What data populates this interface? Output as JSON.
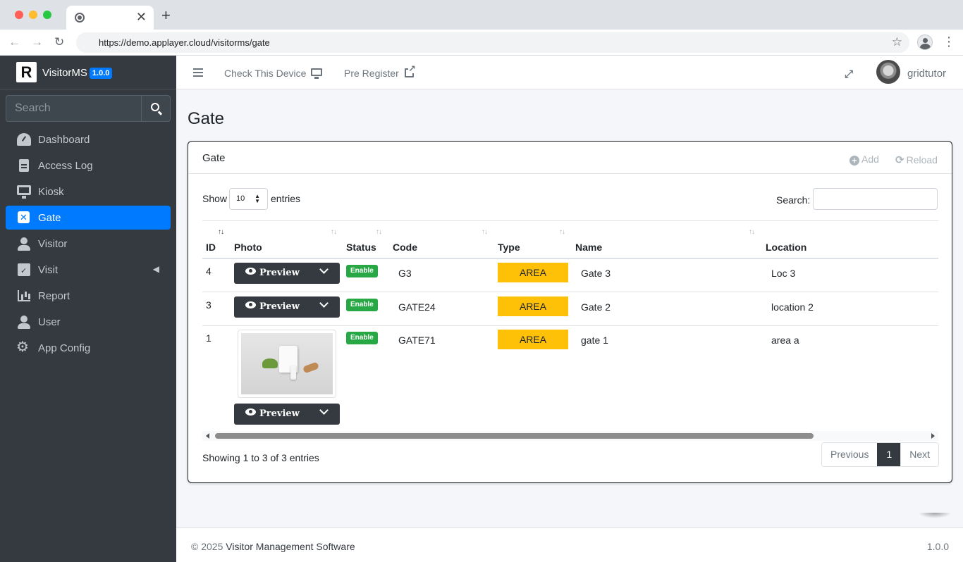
{
  "browser": {
    "url": "https://demo.applayer.cloud/visitorms/gate",
    "new_tab_symbol": "+",
    "close_symbol": "✕"
  },
  "brand": {
    "logo_letter": "R",
    "name": "VisitorMS",
    "version_badge": "1.0.0"
  },
  "sidebar": {
    "search_placeholder": "Search",
    "items": [
      {
        "label": "Dashboard",
        "icon": "dashboard-gauge-icon"
      },
      {
        "label": "Access Log",
        "icon": "file-icon"
      },
      {
        "label": "Kiosk",
        "icon": "desktop-icon"
      },
      {
        "label": "Gate",
        "icon": "x-square-icon",
        "active": true
      },
      {
        "label": "Visitor",
        "icon": "user-icon"
      },
      {
        "label": "Visit",
        "icon": "calendar-check-icon",
        "has_submenu": true
      },
      {
        "label": "Report",
        "icon": "bar-chart-icon"
      },
      {
        "label": "User",
        "icon": "user-tie-icon"
      },
      {
        "label": "App Config",
        "icon": "gears-icon"
      }
    ]
  },
  "topnav": {
    "check_device": "Check This Device",
    "pre_register": "Pre Register",
    "username": "gridtutor"
  },
  "page": {
    "title": "Gate"
  },
  "card": {
    "title": "Gate",
    "add_label": "Add",
    "reload_label": "Reload"
  },
  "datatable": {
    "show_label": "Show",
    "page_length": "10",
    "entries_label": "entries",
    "search_label": "Search:",
    "columns": [
      "ID",
      "Photo",
      "Status",
      "Code",
      "Type",
      "Name",
      "Location"
    ],
    "rows": [
      {
        "id": "4",
        "preview": "Preview",
        "status": "Enable",
        "code": "G3",
        "type": "AREA",
        "name": "Gate 3",
        "location": "Loc 3",
        "has_photo": false
      },
      {
        "id": "3",
        "preview": "Preview",
        "status": "Enable",
        "code": "GATE24",
        "type": "AREA",
        "name": "Gate 2",
        "location": "location 2",
        "has_photo": false
      },
      {
        "id": "1",
        "preview": "Preview",
        "status": "Enable",
        "code": "GATE71",
        "type": "AREA",
        "name": "gate 1",
        "location": "area a",
        "has_photo": true
      }
    ],
    "info": "Showing 1 to 3 of 3 entries",
    "pagination": {
      "previous": "Previous",
      "current": "1",
      "next": "Next"
    }
  },
  "footer": {
    "copyright_prefix": "© 2025",
    "copyright_name": "Visitor Management Software",
    "version": "1.0.0"
  },
  "colors": {
    "sidebar_bg": "#343a40",
    "active_blue": "#007bff",
    "enable_green": "#28a745",
    "type_yellow": "#ffc107",
    "button_dark": "#343a40"
  }
}
